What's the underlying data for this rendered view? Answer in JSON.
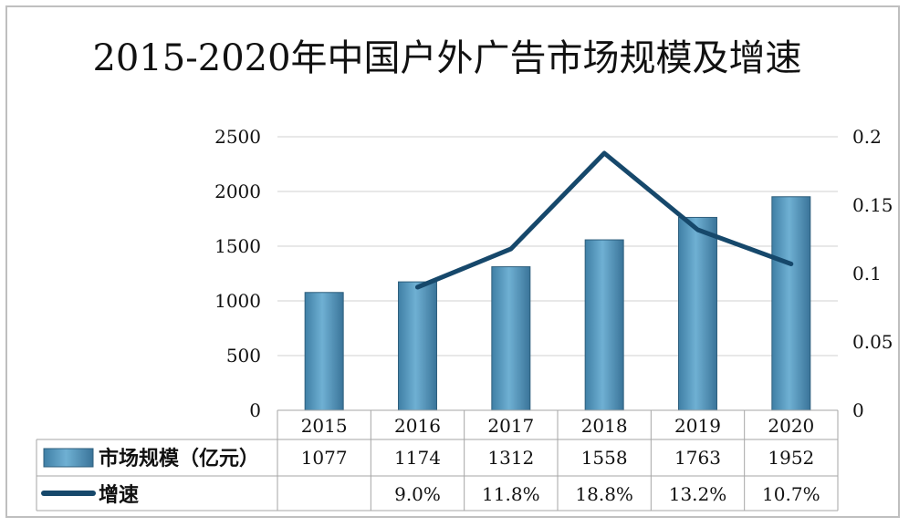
{
  "chart_data": {
    "type": "bar",
    "title": "2015-2020年中国户外广告市场规模及增速",
    "categories": [
      "2015",
      "2016",
      "2017",
      "2018",
      "2019",
      "2020"
    ],
    "series": [
      {
        "name": "市场规模（亿元）",
        "type": "bar",
        "axis": "left",
        "values": [
          1077,
          1174,
          1312,
          1558,
          1763,
          1952
        ],
        "table_values": [
          "1077",
          "1174",
          "1312",
          "1558",
          "1763",
          "1952"
        ]
      },
      {
        "name": "增速",
        "type": "line",
        "axis": "right",
        "values": [
          null,
          0.09,
          0.118,
          0.188,
          0.132,
          0.107
        ],
        "table_values": [
          "",
          "9.0%",
          "11.8%",
          "18.8%",
          "13.2%",
          "10.7%"
        ]
      }
    ],
    "y_left": {
      "range": [
        0,
        2500
      ],
      "ticks": [
        "0",
        "500",
        "1000",
        "1500",
        "2000",
        "2500"
      ]
    },
    "y_right": {
      "range": [
        0,
        0.2
      ],
      "ticks": [
        "0",
        "0.05",
        "0.1",
        "0.15",
        "0.2"
      ]
    },
    "grid": true,
    "legend": "data-table",
    "colors": {
      "bar": "#5b9bc0",
      "bar_edge": "#2f5f7d",
      "line": "#16486b",
      "grid": "#d0d0d0",
      "table_border": "#a6a6a6"
    }
  }
}
